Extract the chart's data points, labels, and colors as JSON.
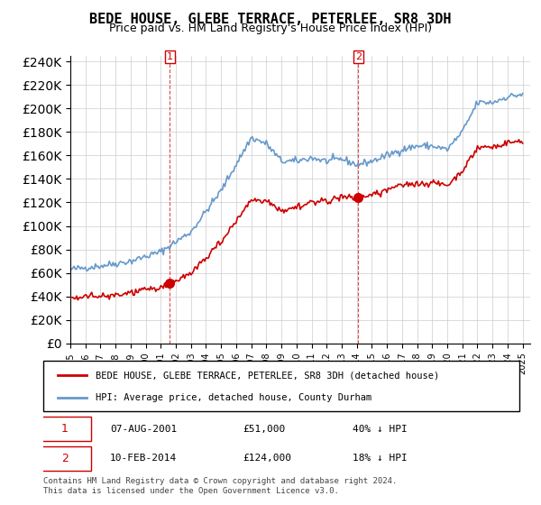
{
  "title": "BEDE HOUSE, GLEBE TERRACE, PETERLEE, SR8 3DH",
  "subtitle": "Price paid vs. HM Land Registry's House Price Index (HPI)",
  "legend_label_red": "BEDE HOUSE, GLEBE TERRACE, PETERLEE, SR8 3DH (detached house)",
  "legend_label_blue": "HPI: Average price, detached house, County Durham",
  "sale1_label": "1",
  "sale1_date": "07-AUG-2001",
  "sale1_price": "£51,000",
  "sale1_hpi": "40% ↓ HPI",
  "sale2_label": "2",
  "sale2_date": "10-FEB-2014",
  "sale2_price": "£124,000",
  "sale2_hpi": "18% ↓ HPI",
  "footer": "Contains HM Land Registry data © Crown copyright and database right 2024.\nThis data is licensed under the Open Government Licence v3.0.",
  "ylim": [
    0,
    240000
  ],
  "ytick_step": 20000,
  "sale1_year": 2001.6,
  "sale1_value": 51000,
  "sale2_year": 2014.1,
  "sale2_value": 124000,
  "red_color": "#cc0000",
  "blue_color": "#6699cc",
  "background_color": "#ffffff",
  "grid_color": "#cccccc"
}
